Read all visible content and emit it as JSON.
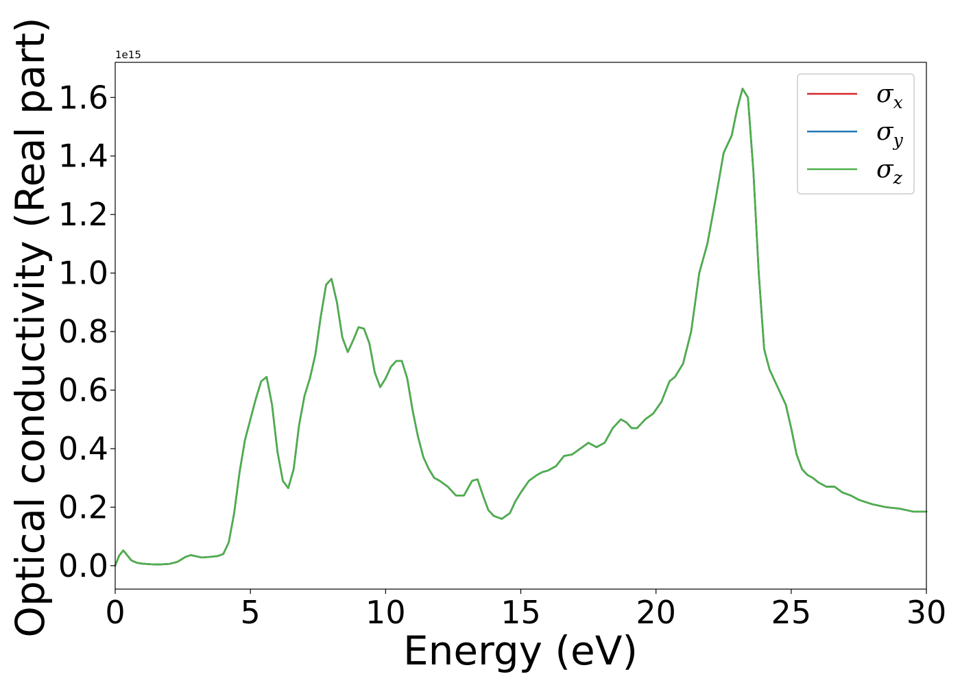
{
  "chart_data": {
    "type": "line",
    "title": "",
    "xlabel": "Energy (eV)",
    "ylabel": "Optical conductivity (Real part)",
    "y_offset_text": "1e15",
    "xlim": [
      0,
      30
    ],
    "ylim": [
      -0.08,
      1.72
    ],
    "xticks": [
      0,
      5,
      10,
      15,
      20,
      25,
      30
    ],
    "xtick_labels": [
      "0",
      "5",
      "10",
      "15",
      "20",
      "25",
      "30"
    ],
    "yticks": [
      0.0,
      0.2,
      0.4,
      0.6,
      0.8,
      1.0,
      1.2,
      1.4,
      1.6
    ],
    "ytick_labels": [
      "0.0",
      "0.2",
      "0.4",
      "0.6",
      "0.8",
      "1.0",
      "1.2",
      "1.4",
      "1.6"
    ],
    "grid": false,
    "legend_position": "top-right",
    "x": [
      0.0,
      0.15,
      0.3,
      0.45,
      0.6,
      0.8,
      1.0,
      1.3,
      1.6,
      2.0,
      2.3,
      2.6,
      2.8,
      3.0,
      3.2,
      3.5,
      3.8,
      4.0,
      4.2,
      4.4,
      4.6,
      4.8,
      5.0,
      5.2,
      5.4,
      5.6,
      5.8,
      6.0,
      6.2,
      6.4,
      6.6,
      6.8,
      7.0,
      7.2,
      7.4,
      7.6,
      7.8,
      8.0,
      8.2,
      8.4,
      8.6,
      8.8,
      9.0,
      9.2,
      9.4,
      9.6,
      9.8,
      10.0,
      10.2,
      10.4,
      10.6,
      10.8,
      11.0,
      11.2,
      11.4,
      11.6,
      11.8,
      12.0,
      12.3,
      12.6,
      12.9,
      13.2,
      13.4,
      13.6,
      13.8,
      14.0,
      14.3,
      14.6,
      14.8,
      15.0,
      15.3,
      15.6,
      15.8,
      16.0,
      16.3,
      16.6,
      16.9,
      17.2,
      17.5,
      17.8,
      18.1,
      18.4,
      18.7,
      18.9,
      19.1,
      19.3,
      19.6,
      19.9,
      20.2,
      20.5,
      20.7,
      21.0,
      21.3,
      21.6,
      21.9,
      22.2,
      22.5,
      22.8,
      23.0,
      23.2,
      23.4,
      23.6,
      23.8,
      24.0,
      24.2,
      24.4,
      24.6,
      24.8,
      25.0,
      25.2,
      25.4,
      25.6,
      25.8,
      26.0,
      26.3,
      26.6,
      26.9,
      27.2,
      27.5,
      28.0,
      28.5,
      29.0,
      29.5,
      30.0
    ],
    "series": [
      {
        "name": "σx",
        "color": "#d62728",
        "values": [
          0.0,
          0.035,
          0.052,
          0.035,
          0.018,
          0.01,
          0.007,
          0.005,
          0.004,
          0.006,
          0.013,
          0.03,
          0.036,
          0.032,
          0.028,
          0.03,
          0.033,
          0.04,
          0.08,
          0.18,
          0.32,
          0.43,
          0.5,
          0.57,
          0.63,
          0.645,
          0.55,
          0.39,
          0.29,
          0.265,
          0.33,
          0.48,
          0.58,
          0.64,
          0.72,
          0.85,
          0.96,
          0.98,
          0.9,
          0.78,
          0.73,
          0.77,
          0.815,
          0.81,
          0.76,
          0.66,
          0.61,
          0.64,
          0.68,
          0.7,
          0.7,
          0.64,
          0.53,
          0.44,
          0.37,
          0.33,
          0.3,
          0.29,
          0.27,
          0.24,
          0.24,
          0.29,
          0.295,
          0.24,
          0.19,
          0.17,
          0.16,
          0.18,
          0.22,
          0.25,
          0.29,
          0.31,
          0.32,
          0.325,
          0.34,
          0.375,
          0.38,
          0.4,
          0.42,
          0.405,
          0.42,
          0.47,
          0.5,
          0.49,
          0.47,
          0.47,
          0.5,
          0.52,
          0.56,
          0.63,
          0.645,
          0.69,
          0.8,
          1.0,
          1.1,
          1.25,
          1.41,
          1.47,
          1.56,
          1.63,
          1.6,
          1.35,
          1.0,
          0.74,
          0.67,
          0.63,
          0.59,
          0.55,
          0.47,
          0.38,
          0.33,
          0.31,
          0.3,
          0.285,
          0.27,
          0.27,
          0.25,
          0.24,
          0.225,
          0.21,
          0.2,
          0.195,
          0.185,
          0.185
        ]
      },
      {
        "name": "σy",
        "color": "#1f77b4",
        "values": [
          0.0,
          0.035,
          0.052,
          0.035,
          0.018,
          0.01,
          0.007,
          0.005,
          0.004,
          0.006,
          0.013,
          0.03,
          0.036,
          0.032,
          0.028,
          0.03,
          0.033,
          0.04,
          0.08,
          0.18,
          0.32,
          0.43,
          0.5,
          0.57,
          0.63,
          0.645,
          0.55,
          0.39,
          0.29,
          0.265,
          0.33,
          0.48,
          0.58,
          0.64,
          0.72,
          0.85,
          0.96,
          0.98,
          0.9,
          0.78,
          0.73,
          0.77,
          0.815,
          0.81,
          0.76,
          0.66,
          0.61,
          0.64,
          0.68,
          0.7,
          0.7,
          0.64,
          0.53,
          0.44,
          0.37,
          0.33,
          0.3,
          0.29,
          0.27,
          0.24,
          0.24,
          0.29,
          0.295,
          0.24,
          0.19,
          0.17,
          0.16,
          0.18,
          0.22,
          0.25,
          0.29,
          0.31,
          0.32,
          0.325,
          0.34,
          0.375,
          0.38,
          0.4,
          0.42,
          0.405,
          0.42,
          0.47,
          0.5,
          0.49,
          0.47,
          0.47,
          0.5,
          0.52,
          0.56,
          0.63,
          0.645,
          0.69,
          0.8,
          1.0,
          1.1,
          1.25,
          1.41,
          1.47,
          1.56,
          1.63,
          1.6,
          1.35,
          1.0,
          0.74,
          0.67,
          0.63,
          0.59,
          0.55,
          0.47,
          0.38,
          0.33,
          0.31,
          0.3,
          0.285,
          0.27,
          0.27,
          0.25,
          0.24,
          0.225,
          0.21,
          0.2,
          0.195,
          0.185,
          0.185
        ]
      },
      {
        "name": "σz",
        "color": "#4daf4a",
        "values": [
          0.0,
          0.035,
          0.052,
          0.035,
          0.018,
          0.01,
          0.007,
          0.005,
          0.004,
          0.006,
          0.013,
          0.03,
          0.036,
          0.032,
          0.028,
          0.03,
          0.033,
          0.04,
          0.08,
          0.18,
          0.32,
          0.43,
          0.5,
          0.57,
          0.63,
          0.645,
          0.55,
          0.39,
          0.29,
          0.265,
          0.33,
          0.48,
          0.58,
          0.64,
          0.72,
          0.85,
          0.96,
          0.98,
          0.9,
          0.78,
          0.73,
          0.77,
          0.815,
          0.81,
          0.76,
          0.66,
          0.61,
          0.64,
          0.68,
          0.7,
          0.7,
          0.64,
          0.53,
          0.44,
          0.37,
          0.33,
          0.3,
          0.29,
          0.27,
          0.24,
          0.24,
          0.29,
          0.295,
          0.24,
          0.19,
          0.17,
          0.16,
          0.18,
          0.22,
          0.25,
          0.29,
          0.31,
          0.32,
          0.325,
          0.34,
          0.375,
          0.38,
          0.4,
          0.42,
          0.405,
          0.42,
          0.47,
          0.5,
          0.49,
          0.47,
          0.47,
          0.5,
          0.52,
          0.56,
          0.63,
          0.645,
          0.69,
          0.8,
          1.0,
          1.1,
          1.25,
          1.41,
          1.47,
          1.56,
          1.63,
          1.6,
          1.35,
          1.0,
          0.74,
          0.67,
          0.63,
          0.59,
          0.55,
          0.47,
          0.38,
          0.33,
          0.31,
          0.3,
          0.285,
          0.27,
          0.27,
          0.25,
          0.24,
          0.225,
          0.21,
          0.2,
          0.195,
          0.185,
          0.185
        ]
      }
    ],
    "legend": [
      {
        "symbol": "σ",
        "subscript": "x",
        "color": "#d62728"
      },
      {
        "symbol": "σ",
        "subscript": "y",
        "color": "#1f77b4"
      },
      {
        "symbol": "σ",
        "subscript": "z",
        "color": "#4daf4a"
      }
    ]
  }
}
